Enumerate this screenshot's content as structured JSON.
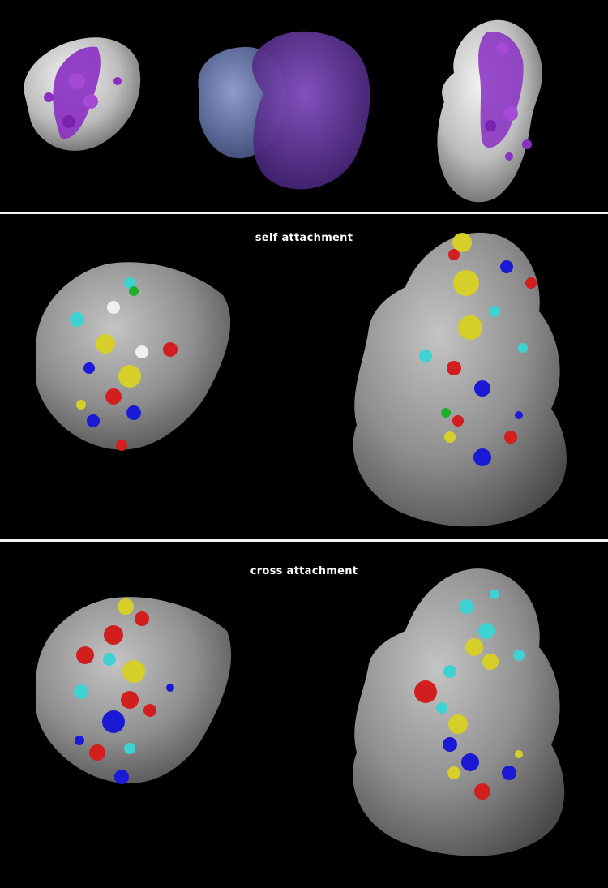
{
  "figure": {
    "panels": [
      {
        "id": "overview",
        "caption": ""
      },
      {
        "id": "self",
        "caption": "self attachment"
      },
      {
        "id": "cross",
        "caption": "cross attachment"
      }
    ],
    "colors": {
      "background": "#000000",
      "separator": "#f2f2f2",
      "surface_light": "#d9d9d9",
      "surface_grey": "#8f8f8f",
      "purple": "#8a2fc2",
      "blue_chain": "#6f7fb8",
      "violet_chain": "#6a3aa6",
      "yellow": "#d6cf2a",
      "cyan": "#3fd2d2",
      "red": "#d21e1e",
      "blue": "#1a1ad6",
      "green": "#1fae2a",
      "white": "#f0f0f0"
    }
  }
}
